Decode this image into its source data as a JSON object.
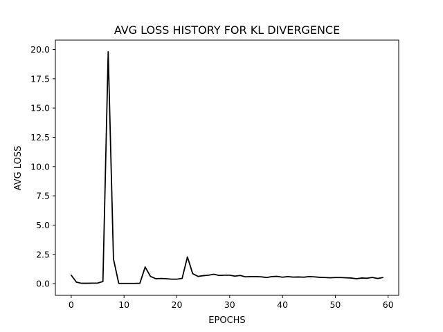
{
  "chart_data": {
    "type": "line",
    "title": "AVG LOSS HISTORY FOR KL DIVERGENCE",
    "xlabel": "EPOCHS",
    "ylabel": "AVG LOSS",
    "xlim": [
      -3,
      62
    ],
    "ylim": [
      -1,
      20.8
    ],
    "xticks": [
      0,
      10,
      20,
      30,
      40,
      50,
      60
    ],
    "xtick_labels": [
      "0",
      "10",
      "20",
      "30",
      "40",
      "50",
      "60"
    ],
    "yticks": [
      0,
      2.5,
      5,
      7.5,
      10,
      12.5,
      15,
      17.5,
      20
    ],
    "ytick_labels": [
      "0.0",
      "2.5",
      "5.0",
      "7.5",
      "10.0",
      "12.5",
      "15.0",
      "17.5",
      "20.0"
    ],
    "grid": false,
    "legend": "none",
    "series": [
      {
        "color": "#000000",
        "x": [
          0,
          1,
          2,
          3,
          4,
          5,
          6,
          7,
          8,
          9,
          10,
          11,
          12,
          13,
          14,
          15,
          16,
          17,
          18,
          19,
          20,
          21,
          22,
          23,
          24,
          25,
          26,
          27,
          28,
          29,
          30,
          31,
          32,
          33,
          34,
          35,
          36,
          37,
          38,
          39,
          40,
          41,
          42,
          43,
          44,
          45,
          46,
          47,
          48,
          49,
          50,
          51,
          52,
          53,
          54,
          55,
          56,
          57,
          58,
          59
        ],
        "values": [
          0.72,
          0.12,
          0.03,
          0.03,
          0.04,
          0.05,
          0.18,
          19.8,
          2.1,
          0.02,
          0.02,
          0.02,
          0.02,
          0.03,
          1.42,
          0.62,
          0.42,
          0.44,
          0.42,
          0.38,
          0.38,
          0.45,
          2.28,
          0.85,
          0.62,
          0.68,
          0.72,
          0.8,
          0.7,
          0.72,
          0.72,
          0.64,
          0.7,
          0.58,
          0.6,
          0.6,
          0.58,
          0.52,
          0.6,
          0.62,
          0.55,
          0.6,
          0.56,
          0.57,
          0.55,
          0.6,
          0.58,
          0.54,
          0.52,
          0.5,
          0.52,
          0.52,
          0.5,
          0.48,
          0.42,
          0.48,
          0.46,
          0.53,
          0.44,
          0.52
        ]
      }
    ]
  }
}
